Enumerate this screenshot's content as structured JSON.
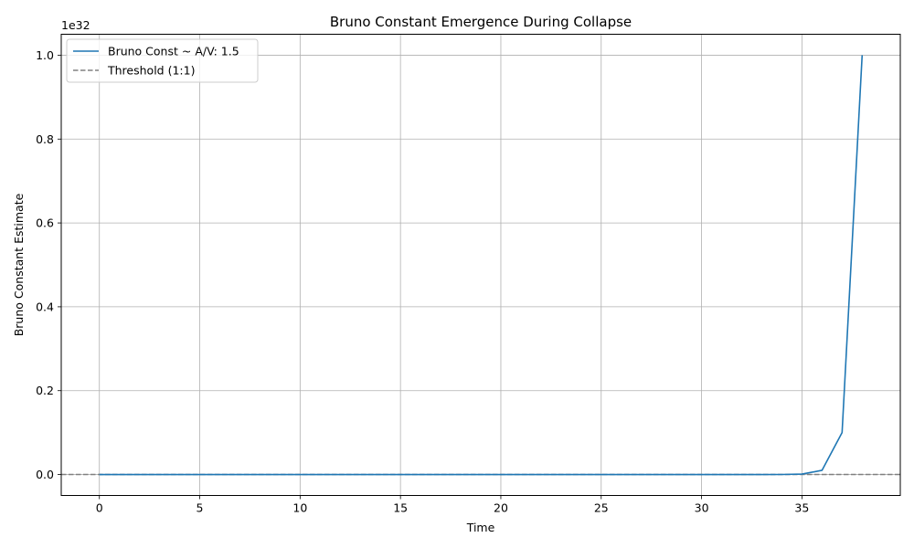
{
  "chart_data": {
    "type": "line",
    "title": "Bruno Constant Emergence During Collapse",
    "xlabel": "Time",
    "ylabel": "Bruno Constant Estimate",
    "y_offset_label": "1e32",
    "xlim": [
      -1.9,
      39.9
    ],
    "ylim": [
      -0.05,
      1.05
    ],
    "x_ticks": [
      0,
      5,
      10,
      15,
      20,
      25,
      30,
      35
    ],
    "x_tick_labels": [
      "0",
      "5",
      "10",
      "15",
      "20",
      "25",
      "30",
      "35"
    ],
    "y_ticks": [
      0.0,
      0.2,
      0.4,
      0.6,
      0.8,
      1.0
    ],
    "y_tick_labels": [
      "0.0",
      "0.2",
      "0.4",
      "0.6",
      "0.8",
      "1.0"
    ],
    "grid": true,
    "legend_position": "top-left",
    "series": [
      {
        "name": "Bruno Const ~ A/V: 1.5",
        "color": "#1f77b4",
        "style": "solid",
        "x": [
          0,
          1,
          2,
          3,
          4,
          5,
          6,
          7,
          8,
          9,
          10,
          11,
          12,
          13,
          14,
          15,
          16,
          17,
          18,
          19,
          20,
          21,
          22,
          23,
          24,
          25,
          26,
          27,
          28,
          29,
          30,
          31,
          32,
          33,
          34,
          35,
          36,
          37,
          38
        ],
        "y": [
          0,
          0,
          0,
          0,
          0,
          0,
          0,
          0,
          0,
          0,
          0,
          0,
          0,
          0,
          0,
          0,
          0,
          0,
          0,
          0,
          0,
          0,
          0,
          0,
          0,
          0,
          0,
          0,
          0,
          0,
          0,
          0,
          0,
          0,
          0.0001,
          0.001,
          0.01,
          0.1,
          1.0
        ]
      }
    ],
    "hlines": [
      {
        "name": "Threshold (1:1)",
        "y": 0,
        "color": "#808080",
        "style": "dashed"
      }
    ]
  }
}
